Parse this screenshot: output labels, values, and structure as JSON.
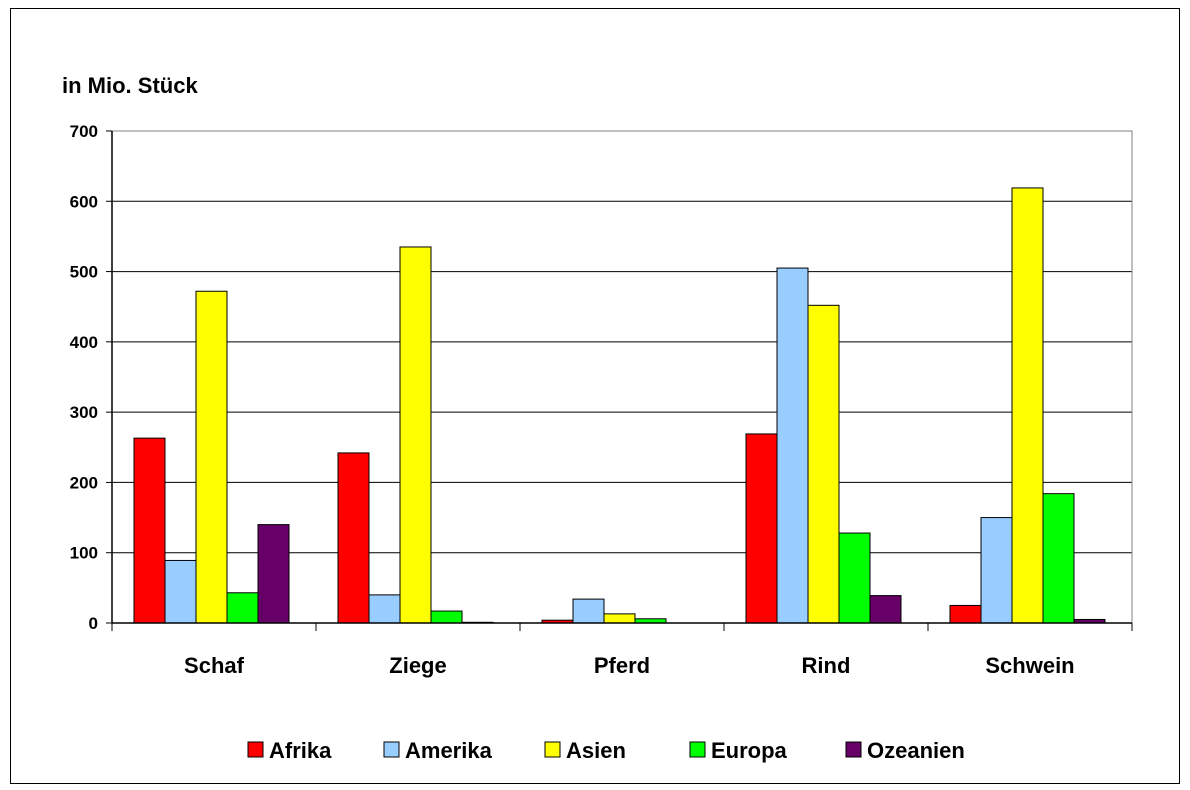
{
  "chart_data": {
    "type": "bar",
    "ylabel": "in Mio. Stück",
    "ylim": [
      0,
      700
    ],
    "yticks": [
      0,
      100,
      200,
      300,
      400,
      500,
      600,
      700
    ],
    "grid": true,
    "legend_position": "bottom",
    "categories": [
      "Schaf",
      "Ziege",
      "Pferd",
      "Rind",
      "Schwein"
    ],
    "series": [
      {
        "name": "Afrika",
        "color": "#ff0000",
        "values": [
          263,
          242,
          4,
          269,
          25
        ]
      },
      {
        "name": "Amerika",
        "color": "#99ccff",
        "values": [
          89,
          40,
          34,
          505,
          150
        ]
      },
      {
        "name": "Asien",
        "color": "#ffff00",
        "values": [
          472,
          535,
          13,
          452,
          619
        ]
      },
      {
        "name": "Europa",
        "color": "#00ff00",
        "values": [
          43,
          17,
          6,
          128,
          184
        ]
      },
      {
        "name": "Ozeanien",
        "color": "#660066",
        "values": [
          140,
          1,
          0,
          39,
          5
        ]
      }
    ]
  }
}
